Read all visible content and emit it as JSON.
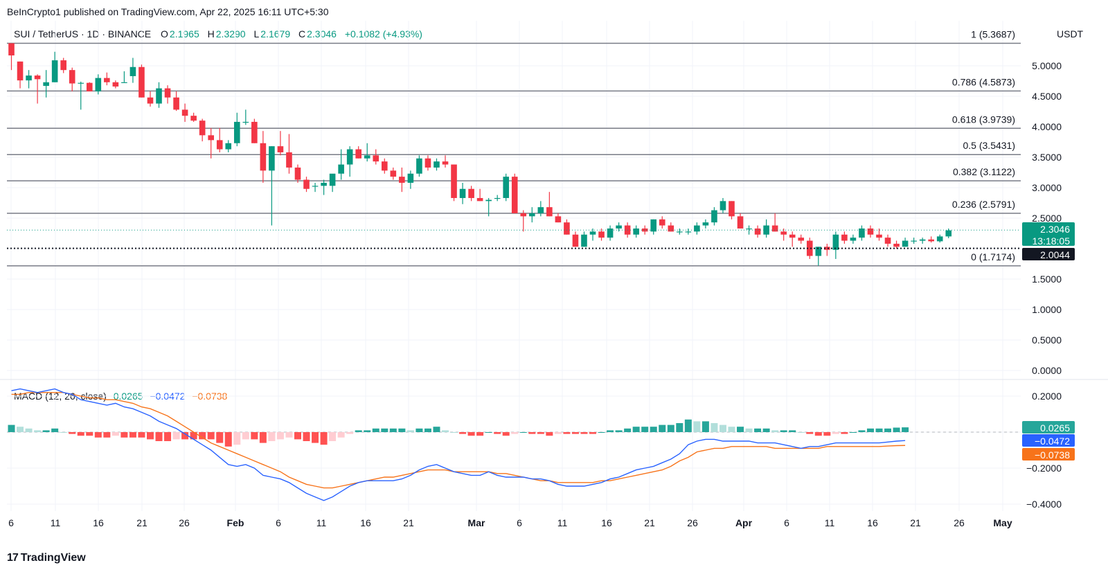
{
  "header": {
    "published_by": "BeInCrypto1 published on TradingView.com, Apr 22, 2025 16:11 UTC+5:30",
    "symbol": "SUI / TetherUS · 1D · BINANCE",
    "o_label": "O",
    "o_value": "2.1965",
    "h_label": "H",
    "h_value": "2.3290",
    "l_label": "L",
    "l_value": "2.1679",
    "c_label": "C",
    "c_value": "2.3046",
    "change": "+0.1082 (+4.93%)",
    "currency": "USDT"
  },
  "footer": {
    "brand": "TradingView",
    "logo": "17"
  },
  "colors": {
    "up": "#089981",
    "down": "#f23645",
    "macd": "#2962ff",
    "signal": "#f7731a",
    "hist_up_strong": "#26a69a",
    "hist_up_weak": "#b2dfdb",
    "hist_down_strong": "#ff5252",
    "hist_down_weak": "#ffcdd2"
  },
  "price_axis": {
    "labels": [
      "5.0000",
      "4.5000",
      "4.0000",
      "3.5000",
      "3.0000",
      "2.5000",
      "1.5000",
      "1.0000",
      "0.5000",
      "0.0000"
    ]
  },
  "price_badges": {
    "current": "2.3046",
    "countdown": "13:18:05",
    "line": "2.0044"
  },
  "fib_levels": [
    {
      "label": "1 (5.3687)",
      "value": 5.3687
    },
    {
      "label": "0.786 (4.5873)",
      "value": 4.5873
    },
    {
      "label": "0.618 (3.9739)",
      "value": 3.9739
    },
    {
      "label": "0.5 (3.5431)",
      "value": 3.5431
    },
    {
      "label": "0.382 (3.1122)",
      "value": 3.1122
    },
    {
      "label": "0.236 (2.5791)",
      "value": 2.5791
    },
    {
      "label": "0 (1.7174)",
      "value": 1.7174
    }
  ],
  "date_axis": {
    "labels": [
      "6",
      "11",
      "16",
      "21",
      "26",
      "Feb",
      "6",
      "11",
      "16",
      "21",
      "Mar",
      "6",
      "11",
      "16",
      "21",
      "26",
      "Apr",
      "6",
      "11",
      "16",
      "21",
      "26",
      "May"
    ]
  },
  "macd": {
    "title": "MACD (12, 26, close)",
    "hist_value": "0.0265",
    "macd_value": "−0.0472",
    "signal_value": "−0.0738",
    "axis_labels": [
      "0.2000",
      "−0.2000",
      "−0.4000"
    ]
  },
  "chart_data": {
    "type": "candlestick",
    "title": "SUI / TetherUS · 1D · BINANCE",
    "ylim": [
      0,
      5.55
    ],
    "candles_ohlc": [
      [
        5.37,
        5.37,
        4.93,
        5.17
      ],
      [
        5.07,
        5.07,
        4.63,
        4.76
      ],
      [
        4.76,
        4.93,
        4.63,
        4.84
      ],
      [
        4.84,
        4.86,
        4.38,
        4.78
      ],
      [
        4.67,
        4.93,
        4.48,
        4.73
      ],
      [
        4.73,
        5.23,
        4.73,
        5.09
      ],
      [
        5.09,
        5.13,
        4.88,
        4.93
      ],
      [
        4.93,
        4.97,
        4.58,
        4.71
      ],
      [
        4.71,
        4.74,
        4.28,
        4.72
      ],
      [
        4.72,
        4.73,
        4.58,
        4.58
      ],
      [
        4.58,
        4.86,
        4.53,
        4.8
      ],
      [
        4.8,
        4.89,
        4.68,
        4.73
      ],
      [
        4.73,
        4.76,
        4.63,
        4.66
      ],
      [
        4.73,
        4.91,
        4.73,
        4.73
      ],
      [
        4.83,
        5.13,
        4.72,
        4.98
      ],
      [
        4.98,
        5.02,
        4.48,
        4.48
      ],
      [
        4.48,
        4.58,
        4.33,
        4.38
      ],
      [
        4.38,
        4.73,
        4.31,
        4.63
      ],
      [
        4.63,
        4.68,
        4.38,
        4.48
      ],
      [
        4.48,
        4.58,
        4.26,
        4.28
      ],
      [
        4.28,
        4.38,
        4.08,
        4.18
      ],
      [
        4.18,
        4.23,
        4.08,
        4.1
      ],
      [
        4.1,
        4.13,
        3.76,
        3.86
      ],
      [
        3.86,
        3.98,
        3.48,
        3.78
      ],
      [
        3.78,
        3.98,
        3.58,
        3.63
      ],
      [
        3.63,
        3.78,
        3.58,
        3.73
      ],
      [
        3.73,
        4.23,
        3.68,
        4.08
      ],
      [
        4.08,
        4.28,
        4.03,
        4.08
      ],
      [
        4.08,
        4.13,
        3.73,
        3.73
      ],
      [
        3.73,
        3.93,
        3.08,
        3.28
      ],
      [
        3.28,
        3.68,
        2.38,
        3.68
      ],
      [
        3.68,
        3.93,
        3.53,
        3.58
      ],
      [
        3.58,
        3.88,
        3.23,
        3.33
      ],
      [
        3.33,
        3.38,
        3.08,
        3.13
      ],
      [
        3.13,
        3.18,
        2.93,
        2.98
      ],
      [
        3.03,
        3.08,
        2.93,
        3.03
      ],
      [
        3.03,
        3.13,
        2.88,
        3.08
      ],
      [
        3.03,
        3.18,
        2.93,
        3.23
      ],
      [
        3.23,
        3.63,
        3.13,
        3.38
      ],
      [
        3.38,
        3.68,
        3.18,
        3.63
      ],
      [
        3.63,
        3.68,
        3.48,
        3.48
      ],
      [
        3.48,
        3.73,
        3.43,
        3.53
      ],
      [
        3.53,
        3.63,
        3.38,
        3.43
      ],
      [
        3.43,
        3.48,
        3.23,
        3.28
      ],
      [
        3.28,
        3.33,
        3.13,
        3.18
      ],
      [
        3.18,
        3.33,
        2.93,
        3.08
      ],
      [
        3.08,
        3.28,
        2.98,
        3.23
      ],
      [
        3.23,
        3.53,
        3.18,
        3.48
      ],
      [
        3.48,
        3.53,
        3.28,
        3.33
      ],
      [
        3.33,
        3.48,
        3.28,
        3.43
      ],
      [
        3.43,
        3.53,
        3.33,
        3.38
      ],
      [
        3.38,
        3.38,
        2.78,
        2.83
      ],
      [
        2.83,
        3.08,
        2.73,
        2.98
      ],
      [
        2.98,
        3.03,
        2.78,
        2.83
      ],
      [
        2.83,
        2.98,
        2.78,
        2.78
      ],
      [
        2.78,
        2.83,
        2.53,
        2.8
      ],
      [
        2.83,
        2.88,
        2.78,
        2.83
      ],
      [
        2.83,
        3.23,
        2.78,
        3.18
      ],
      [
        3.18,
        3.23,
        2.58,
        2.58
      ],
      [
        2.58,
        2.63,
        2.28,
        2.53
      ],
      [
        2.53,
        2.68,
        2.43,
        2.58
      ],
      [
        2.58,
        2.78,
        2.53,
        2.68
      ],
      [
        2.68,
        2.93,
        2.53,
        2.53
      ],
      [
        2.53,
        2.58,
        2.43,
        2.43
      ],
      [
        2.43,
        2.48,
        2.23,
        2.23
      ],
      [
        2.23,
        2.28,
        2.03,
        2.03
      ],
      [
        2.03,
        2.28,
        2.03,
        2.23
      ],
      [
        2.23,
        2.33,
        2.13,
        2.28
      ],
      [
        2.28,
        2.33,
        2.13,
        2.18
      ],
      [
        2.18,
        2.38,
        2.13,
        2.33
      ],
      [
        2.33,
        2.43,
        2.28,
        2.38
      ],
      [
        2.38,
        2.43,
        2.18,
        2.23
      ],
      [
        2.23,
        2.38,
        2.18,
        2.33
      ],
      [
        2.33,
        2.38,
        2.23,
        2.28
      ],
      [
        2.28,
        2.48,
        2.23,
        2.48
      ],
      [
        2.48,
        2.53,
        2.33,
        2.38
      ],
      [
        2.38,
        2.43,
        2.28,
        2.28
      ],
      [
        2.28,
        2.33,
        2.23,
        2.28
      ],
      [
        2.28,
        2.33,
        2.23,
        2.28
      ],
      [
        2.28,
        2.43,
        2.23,
        2.38
      ],
      [
        2.38,
        2.48,
        2.33,
        2.43
      ],
      [
        2.43,
        2.68,
        2.38,
        2.63
      ],
      [
        2.63,
        2.83,
        2.58,
        2.78
      ],
      [
        2.78,
        2.78,
        2.48,
        2.53
      ],
      [
        2.53,
        2.58,
        2.33,
        2.33
      ],
      [
        2.33,
        2.38,
        2.23,
        2.33
      ],
      [
        2.33,
        2.38,
        2.18,
        2.23
      ],
      [
        2.23,
        2.48,
        2.18,
        2.38
      ],
      [
        2.38,
        2.58,
        2.28,
        2.28
      ],
      [
        2.28,
        2.33,
        2.13,
        2.23
      ],
      [
        2.23,
        2.28,
        2.03,
        2.18
      ],
      [
        2.18,
        2.23,
        2.08,
        2.13
      ],
      [
        2.13,
        2.18,
        1.83,
        1.88
      ],
      [
        1.88,
        2.03,
        1.72,
        2.03
      ],
      [
        2.03,
        2.08,
        1.88,
        1.98
      ],
      [
        1.98,
        2.28,
        1.83,
        2.23
      ],
      [
        2.23,
        2.28,
        2.08,
        2.13
      ],
      [
        2.13,
        2.23,
        2.08,
        2.18
      ],
      [
        2.18,
        2.38,
        2.13,
        2.33
      ],
      [
        2.33,
        2.38,
        2.18,
        2.23
      ],
      [
        2.23,
        2.33,
        2.13,
        2.18
      ],
      [
        2.18,
        2.23,
        2.03,
        2.08
      ],
      [
        2.08,
        2.13,
        2.0,
        2.03
      ],
      [
        2.03,
        2.18,
        2.03,
        2.13
      ],
      [
        2.13,
        2.18,
        2.08,
        2.13
      ],
      [
        2.13,
        2.18,
        2.08,
        2.15
      ],
      [
        2.15,
        2.2,
        2.1,
        2.12
      ],
      [
        2.12,
        2.23,
        2.1,
        2.2
      ],
      [
        2.2,
        2.33,
        2.17,
        2.3
      ]
    ],
    "macd_ylim": [
      -0.45,
      0.27
    ],
    "macd_line": [
      0.23,
      0.24,
      0.23,
      0.22,
      0.23,
      0.24,
      0.22,
      0.21,
      0.18,
      0.17,
      0.16,
      0.15,
      0.16,
      0.14,
      0.13,
      0.11,
      0.09,
      0.06,
      0.04,
      0.02,
      -0.01,
      -0.04,
      -0.07,
      -0.1,
      -0.14,
      -0.18,
      -0.19,
      -0.18,
      -0.2,
      -0.24,
      -0.25,
      -0.26,
      -0.28,
      -0.31,
      -0.34,
      -0.36,
      -0.38,
      -0.36,
      -0.33,
      -0.3,
      -0.28,
      -0.27,
      -0.27,
      -0.27,
      -0.27,
      -0.26,
      -0.24,
      -0.21,
      -0.19,
      -0.18,
      -0.2,
      -0.22,
      -0.23,
      -0.24,
      -0.24,
      -0.22,
      -0.24,
      -0.25,
      -0.25,
      -0.25,
      -0.26,
      -0.26,
      -0.27,
      -0.29,
      -0.3,
      -0.3,
      -0.3,
      -0.29,
      -0.28,
      -0.26,
      -0.25,
      -0.23,
      -0.21,
      -0.2,
      -0.19,
      -0.17,
      -0.15,
      -0.12,
      -0.07,
      -0.05,
      -0.04,
      -0.04,
      -0.05,
      -0.05,
      -0.05,
      -0.05,
      -0.06,
      -0.06,
      -0.06,
      -0.07,
      -0.08,
      -0.09,
      -0.08,
      -0.08,
      -0.07,
      -0.06,
      -0.06,
      -0.06,
      -0.06,
      -0.06,
      -0.06,
      -0.055,
      -0.05,
      -0.047
    ],
    "signal_line": [
      0.21,
      0.21,
      0.22,
      0.22,
      0.22,
      0.22,
      0.22,
      0.21,
      0.2,
      0.19,
      0.19,
      0.18,
      0.18,
      0.17,
      0.16,
      0.14,
      0.13,
      0.11,
      0.09,
      0.06,
      0.03,
      0.0,
      -0.03,
      -0.06,
      -0.08,
      -0.1,
      -0.12,
      -0.14,
      -0.16,
      -0.18,
      -0.2,
      -0.22,
      -0.25,
      -0.27,
      -0.29,
      -0.3,
      -0.31,
      -0.31,
      -0.3,
      -0.29,
      -0.28,
      -0.27,
      -0.26,
      -0.25,
      -0.25,
      -0.24,
      -0.23,
      -0.22,
      -0.21,
      -0.21,
      -0.21,
      -0.22,
      -0.22,
      -0.22,
      -0.22,
      -0.22,
      -0.23,
      -0.23,
      -0.24,
      -0.25,
      -0.26,
      -0.27,
      -0.27,
      -0.28,
      -0.28,
      -0.28,
      -0.28,
      -0.28,
      -0.27,
      -0.27,
      -0.26,
      -0.25,
      -0.24,
      -0.23,
      -0.22,
      -0.21,
      -0.19,
      -0.16,
      -0.14,
      -0.11,
      -0.1,
      -0.09,
      -0.09,
      -0.08,
      -0.08,
      -0.08,
      -0.08,
      -0.08,
      -0.09,
      -0.09,
      -0.09,
      -0.09,
      -0.09,
      -0.09,
      -0.08,
      -0.08,
      -0.08,
      -0.08,
      -0.08,
      -0.08,
      -0.08,
      -0.077,
      -0.075,
      -0.074
    ],
    "histogram": [
      0.04,
      0.03,
      0.02,
      0.01,
      0.01,
      0.02,
      0.0,
      -0.01,
      -0.02,
      -0.02,
      -0.03,
      -0.03,
      -0.02,
      -0.03,
      -0.03,
      -0.03,
      -0.04,
      -0.05,
      -0.05,
      -0.04,
      -0.04,
      -0.04,
      -0.04,
      -0.04,
      -0.06,
      -0.08,
      -0.07,
      -0.04,
      -0.04,
      -0.06,
      -0.05,
      -0.04,
      -0.03,
      -0.04,
      -0.05,
      -0.06,
      -0.07,
      -0.05,
      -0.03,
      -0.01,
      0.01,
      0.01,
      0.02,
      0.02,
      0.02,
      0.02,
      0.01,
      0.02,
      0.02,
      0.03,
      0.01,
      0.0,
      -0.01,
      -0.02,
      -0.02,
      0.0,
      -0.01,
      -0.02,
      -0.01,
      0.0,
      -0.01,
      -0.01,
      -0.02,
      -0.01,
      -0.01,
      -0.01,
      -0.01,
      -0.01,
      0.0,
      0.01,
      0.01,
      0.02,
      0.03,
      0.03,
      0.03,
      0.04,
      0.04,
      0.05,
      0.07,
      0.06,
      0.06,
      0.05,
      0.04,
      0.03,
      0.03,
      0.02,
      0.02,
      0.02,
      0.01,
      0.01,
      0.01,
      0.0,
      -0.01,
      -0.02,
      -0.02,
      -0.01,
      -0.01,
      0.0,
      0.01,
      0.02,
      0.02,
      0.02,
      0.025,
      0.0265
    ]
  }
}
